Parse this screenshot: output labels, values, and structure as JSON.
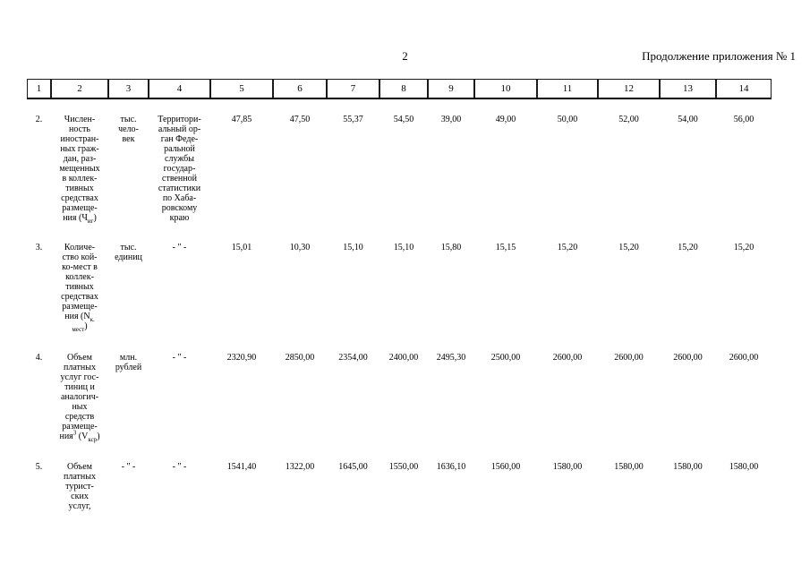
{
  "page": {
    "number": "2",
    "continuation": "Продолжение приложения № 1"
  },
  "table": {
    "header_cols": [
      "1",
      "2",
      "3",
      "4",
      "5",
      "6",
      "7",
      "8",
      "9",
      "10",
      "11",
      "12",
      "13",
      "14"
    ],
    "rows": [
      {
        "num": "2.",
        "indicator": "Числен-\nность\nиностран-\nных граж-\nдан, раз-\nмещенных\nв коллек-\nтивных\nсредствах\nразмеще-\nния (Ч_{иг})",
        "unit": "тыс.\nчело-\nвек",
        "source": "Территори-\nальный ор-\nган Феде-\nральной\nслужбы\nгосудар-\nственной\nстатистики\nпо Хаба-\nровскому\nкраю",
        "values": [
          "47,85",
          "47,50",
          "55,37",
          "54,50",
          "39,00",
          "49,00",
          "50,00",
          "52,00",
          "54,00",
          "56,00"
        ]
      },
      {
        "num": "3.",
        "indicator": "Количе-\nство кой-\nко-мест в\nколлек-\nтивных\nсредствах\nразмеще-\nния (N_{к.}\n_{мест})",
        "unit": "тыс.\nединиц",
        "source": "- \" -",
        "values": [
          "15,01",
          "10,30",
          "15,10",
          "15,10",
          "15,80",
          "15,15",
          "15,20",
          "15,20",
          "15,20",
          "15,20"
        ]
      },
      {
        "num": "4.",
        "indicator": "Объем\nплатных\nуслуг гос-\nтиниц и\nаналогич-\nных\nсредств\nразмеще-\nния^{3} (V_{кср})",
        "unit": "млн.\nрублей",
        "source": "- \" -",
        "values": [
          "2320,90",
          "2850,00",
          "2354,00",
          "2400,00",
          "2495,30",
          "2500,00",
          "2600,00",
          "2600,00",
          "2600,00",
          "2600,00"
        ]
      },
      {
        "num": "5.",
        "indicator": "Объем\nплатных\nтурист-\nских\nуслуг,",
        "unit": "- \" -",
        "source": "- \" -",
        "values": [
          "1541,40",
          "1322,00",
          "1645,00",
          "1550,00",
          "1636,10",
          "1560,00",
          "1580,00",
          "1580,00",
          "1580,00",
          "1580,00"
        ]
      }
    ]
  }
}
